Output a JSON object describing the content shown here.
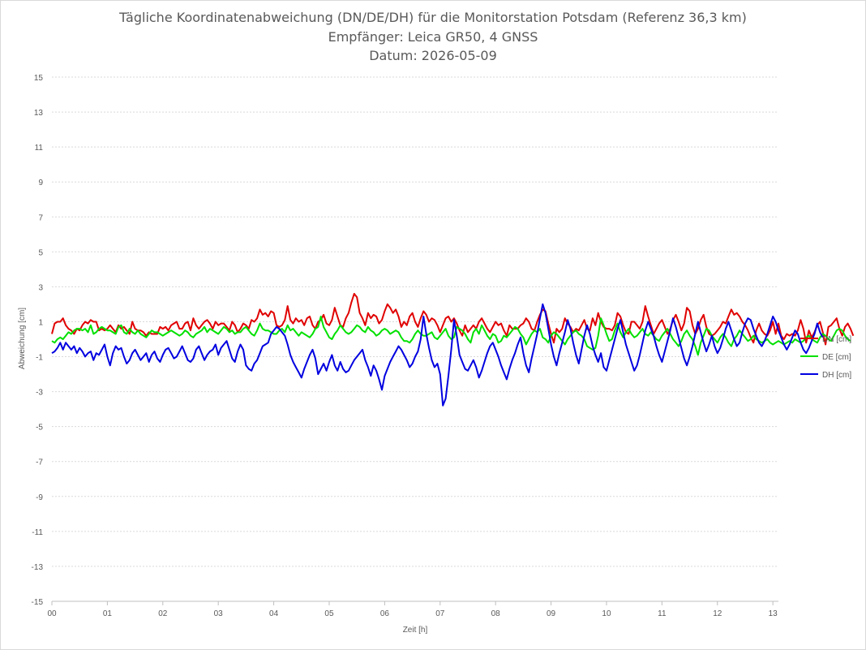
{
  "title_lines": [
    "Tägliche Koordinatenabweichung (DN/DE/DH) für die Monitorstation Potsdam (Referenz 36,3 km)",
    "Empfänger: Leica GR50, 4 GNSS",
    "Datum: 2026-05-09"
  ],
  "chart_data": {
    "type": "line",
    "title": "Tägliche Koordinatenabweichung (DN/DE/DH) für die Monitorstation Potsdam (Referenz 36,3 km)",
    "subtitle": [
      "Empfänger: Leica GR50, 4 GNSS",
      "Datum: 2026-05-09"
    ],
    "xlabel": "Zeit [h]",
    "ylabel": "Abweichung [cm]",
    "xlim": [
      0,
      13.1
    ],
    "ylim": [
      -15,
      15
    ],
    "x_ticks": [
      "00",
      "01",
      "02",
      "03",
      "04",
      "05",
      "06",
      "07",
      "08",
      "09",
      "10",
      "11",
      "12",
      "13"
    ],
    "y_ticks": [
      "15",
      "13",
      "11",
      "9",
      "7",
      "5",
      "3",
      "1",
      "-1",
      "-3",
      "-5",
      "-7",
      "-9",
      "-11",
      "-13",
      "-15"
    ],
    "grid": "horizontal dotted",
    "legend_position": "right",
    "x_step_h": 0.05,
    "series": [
      {
        "name": "DN [cm]",
        "color": "#e00000",
        "values": [
          0.3,
          0.9,
          1.0,
          1.0,
          1.2,
          0.8,
          0.6,
          0.5,
          0.3,
          0.6,
          0.5,
          0.8,
          1.0,
          0.9,
          1.1,
          1.0,
          1.0,
          0.5,
          0.6,
          0.5,
          0.6,
          0.8,
          0.6,
          0.4,
          0.8,
          0.6,
          0.7,
          0.5,
          0.3,
          1.0,
          0.6,
          0.5,
          0.5,
          0.4,
          0.2,
          0.4,
          0.3,
          0.3,
          0.3,
          0.7,
          0.6,
          0.7,
          0.5,
          0.8,
          0.9,
          1.0,
          0.6,
          0.6,
          0.9,
          1.0,
          0.5,
          1.2,
          0.8,
          0.6,
          0.8,
          1.0,
          1.1,
          0.9,
          0.6,
          1.0,
          0.8,
          0.9,
          0.9,
          0.7,
          0.5,
          1.0,
          0.8,
          0.4,
          0.6,
          0.9,
          0.8,
          0.6,
          1.1,
          1.0,
          1.2,
          1.7,
          1.4,
          1.5,
          1.3,
          1.6,
          1.5,
          0.8,
          0.7,
          0.8,
          1.1,
          1.9,
          1.1,
          0.9,
          1.2,
          1.0,
          1.1,
          0.8,
          1.2,
          1.3,
          0.8,
          0.6,
          1.0,
          1.1,
          1.4,
          0.9,
          0.8,
          1.1,
          1.8,
          1.3,
          0.8,
          0.7,
          1.2,
          1.5,
          2.1,
          2.6,
          2.4,
          1.5,
          1.2,
          0.8,
          1.5,
          1.2,
          1.4,
          1.3,
          0.9,
          1.1,
          1.6,
          2.0,
          1.8,
          1.5,
          1.7,
          1.3,
          0.7,
          1.0,
          0.8,
          1.3,
          1.5,
          1.0,
          0.7,
          1.2,
          1.6,
          1.4,
          1.0,
          1.2,
          1.1,
          0.8,
          0.4,
          0.8,
          1.2,
          1.3,
          1.0,
          1.2,
          0.9,
          0.5,
          0.2,
          0.8,
          0.4,
          0.6,
          0.8,
          0.6,
          1.0,
          1.2,
          0.9,
          0.6,
          0.4,
          0.7,
          1.0,
          0.8,
          0.9,
          0.5,
          0.2,
          0.8,
          0.6,
          0.6,
          0.6,
          0.8,
          0.9,
          1.2,
          1.0,
          0.6,
          0.5,
          1.0,
          1.4,
          1.7,
          1.6,
          0.9,
          0.3,
          -0.2,
          0.6,
          0.4,
          0.6,
          1.2,
          0.9,
          0.7,
          0.4,
          0.6,
          0.5,
          0.8,
          1.1,
          0.6,
          0.5,
          1.2,
          0.8,
          1.5,
          1.0,
          0.7,
          0.6,
          0.6,
          0.5,
          0.8,
          1.5,
          1.3,
          0.8,
          0.4,
          0.3,
          1.0,
          1.0,
          0.8,
          0.6,
          1.0,
          1.9,
          1.3,
          0.8,
          0.3,
          0.6,
          0.9,
          1.1,
          0.7,
          0.3,
          0.6,
          1.1,
          1.4,
          1.0,
          0.5,
          0.9,
          1.8,
          1.6,
          0.8,
          0.3,
          0.6,
          1.1,
          1.4,
          0.7,
          0.3,
          0.2,
          0.3,
          0.5,
          0.7,
          1.0,
          0.9,
          1.3,
          1.7,
          1.4,
          1.5,
          1.3,
          1.0,
          0.8,
          0.5,
          0.1,
          -0.2,
          0.5,
          0.9,
          0.5,
          0.3,
          0.2,
          0.5,
          1.0,
          0.3,
          0.9,
          0.2,
          0.0,
          0.3,
          0.2,
          0.3,
          0.2,
          0.5,
          1.1,
          0.6,
          -0.2,
          0.5,
          0.1,
          0.4,
          0.8,
          1.0,
          0.4,
          -0.3,
          0.7,
          0.8,
          1.0,
          1.2,
          0.6,
          0.2,
          0.7,
          0.9,
          0.6,
          0.2
        ]
      },
      {
        "name": "DE [cm]",
        "color": "#00e000",
        "values": [
          -0.1,
          -0.2,
          0.0,
          0.1,
          0.0,
          0.2,
          0.4,
          0.3,
          0.5,
          0.6,
          0.6,
          0.5,
          0.6,
          0.4,
          0.8,
          0.3,
          0.4,
          0.6,
          0.7,
          0.6,
          0.5,
          0.5,
          0.4,
          0.3,
          0.7,
          0.8,
          0.4,
          0.3,
          0.6,
          0.4,
          0.3,
          0.5,
          0.3,
          0.2,
          0.1,
          0.3,
          0.5,
          0.4,
          0.4,
          0.3,
          0.2,
          0.3,
          0.4,
          0.5,
          0.4,
          0.3,
          0.2,
          0.3,
          0.5,
          0.4,
          0.2,
          0.1,
          0.3,
          0.4,
          0.5,
          0.7,
          0.4,
          0.6,
          0.5,
          0.4,
          0.3,
          0.5,
          0.7,
          0.6,
          0.4,
          0.5,
          0.3,
          0.4,
          0.4,
          0.6,
          0.7,
          0.5,
          0.3,
          0.2,
          0.5,
          0.9,
          0.6,
          0.5,
          0.5,
          0.4,
          0.3,
          0.3,
          0.5,
          0.6,
          0.4,
          0.8,
          0.5,
          0.6,
          0.4,
          0.2,
          0.4,
          0.3,
          0.2,
          0.1,
          0.3,
          0.6,
          0.7,
          1.3,
          0.7,
          0.4,
          0.1,
          0.0,
          0.3,
          0.5,
          0.8,
          0.6,
          0.4,
          0.3,
          0.4,
          0.6,
          0.8,
          0.7,
          0.5,
          0.4,
          0.7,
          0.5,
          0.4,
          0.2,
          0.3,
          0.5,
          0.6,
          0.5,
          0.3,
          0.4,
          0.5,
          0.4,
          0.1,
          -0.1,
          -0.1,
          -0.2,
          0.0,
          0.3,
          0.5,
          0.3,
          0.2,
          0.2,
          0.3,
          0.4,
          0.1,
          0.0,
          0.2,
          0.4,
          0.6,
          0.2,
          0.0,
          0.1,
          0.7,
          0.6,
          0.5,
          0.3,
          0.0,
          -0.2,
          0.4,
          0.6,
          0.3,
          0.8,
          0.5,
          0.2,
          0.0,
          0.3,
          0.2,
          -0.2,
          -0.1,
          0.2,
          0.1,
          0.3,
          0.5,
          0.7,
          0.6,
          0.3,
          0.1,
          -0.3,
          0.0,
          0.3,
          0.5,
          0.4,
          0.6,
          0.1,
          0.0,
          -0.2,
          0.2,
          0.4,
          0.3,
          0.1,
          -0.1,
          -0.3,
          0.0,
          0.2,
          0.4,
          0.5,
          0.3,
          0.2,
          0.0,
          -0.4,
          -0.5,
          -0.6,
          -0.5,
          0.2,
          1.2,
          0.8,
          0.3,
          -0.1,
          0.0,
          0.5,
          0.9,
          0.4,
          0.1,
          0.4,
          0.6,
          0.3,
          0.1,
          0.2,
          0.4,
          0.6,
          0.3,
          0.2,
          0.4,
          0.2,
          0.0,
          -0.1,
          0.2,
          0.4,
          0.6,
          0.3,
          0.0,
          -0.2,
          -0.4,
          -0.1,
          0.3,
          0.5,
          0.2,
          0.0,
          -0.4,
          -0.9,
          -0.2,
          0.2,
          0.6,
          0.5,
          0.2,
          0.0,
          -0.2,
          0.1,
          0.3,
          0.1,
          -0.2,
          -0.4,
          0.0,
          0.2,
          0.5,
          0.3,
          0.1,
          -0.1,
          0.0,
          0.2,
          0.0,
          -0.1,
          -0.2,
          -0.1,
          0.0,
          -0.2,
          -0.3,
          -0.2,
          -0.1,
          -0.2,
          -0.3,
          -0.2,
          -0.1,
          -0.2,
          0.0,
          -0.1,
          -0.2,
          -0.1,
          0.1,
          0.2,
          0.0,
          -0.1,
          -0.2,
          0.1,
          0.3,
          0.2,
          0.0,
          -0.1,
          0.2,
          0.5,
          0.6,
          0.5,
          0.2,
          0.0,
          -0.1
        ]
      },
      {
        "name": "DH [cm]",
        "color": "#0000e0",
        "values": [
          -0.8,
          -0.7,
          -0.5,
          -0.2,
          -0.6,
          -0.2,
          -0.4,
          -0.6,
          -0.4,
          -0.8,
          -0.5,
          -0.7,
          -1.0,
          -0.8,
          -0.7,
          -1.2,
          -0.8,
          -0.9,
          -0.6,
          -0.3,
          -1.0,
          -1.5,
          -0.8,
          -0.4,
          -0.6,
          -0.5,
          -1.0,
          -1.4,
          -1.2,
          -0.8,
          -0.6,
          -0.9,
          -1.2,
          -1.0,
          -0.8,
          -1.3,
          -0.9,
          -0.7,
          -1.1,
          -1.3,
          -0.9,
          -0.6,
          -0.5,
          -0.8,
          -1.1,
          -1.0,
          -0.7,
          -0.4,
          -0.8,
          -1.2,
          -1.3,
          -1.1,
          -0.6,
          -0.4,
          -0.8,
          -1.2,
          -0.9,
          -0.7,
          -0.6,
          -0.3,
          -0.9,
          -0.5,
          -0.3,
          -0.1,
          -0.6,
          -1.1,
          -1.3,
          -0.7,
          -0.3,
          -0.6,
          -1.5,
          -1.7,
          -1.8,
          -1.4,
          -1.2,
          -0.8,
          -0.4,
          -0.3,
          -0.2,
          0.3,
          0.5,
          0.7,
          0.6,
          0.4,
          0.2,
          -0.3,
          -0.9,
          -1.3,
          -1.6,
          -1.9,
          -2.2,
          -1.7,
          -1.3,
          -0.9,
          -0.6,
          -1.1,
          -2.0,
          -1.7,
          -1.4,
          -1.8,
          -1.3,
          -0.9,
          -1.5,
          -1.8,
          -1.3,
          -1.7,
          -1.9,
          -1.8,
          -1.5,
          -1.2,
          -1.0,
          -0.8,
          -0.6,
          -1.2,
          -1.6,
          -2.1,
          -1.5,
          -1.8,
          -2.3,
          -2.9,
          -2.1,
          -1.7,
          -1.3,
          -1.0,
          -0.7,
          -0.4,
          -0.6,
          -0.9,
          -1.2,
          -1.6,
          -1.4,
          -1.0,
          -0.7,
          0.0,
          1.3,
          0.3,
          -0.5,
          -1.2,
          -1.6,
          -1.4,
          -2.0,
          -3.8,
          -3.4,
          -2.1,
          -0.6,
          1.1,
          0.2,
          -0.9,
          -1.3,
          -1.7,
          -1.8,
          -1.5,
          -1.2,
          -1.6,
          -2.2,
          -1.8,
          -1.3,
          -0.8,
          -0.4,
          -0.2,
          -0.6,
          -1.0,
          -1.5,
          -1.9,
          -2.3,
          -1.7,
          -1.2,
          -0.8,
          -0.3,
          0.1,
          -0.8,
          -1.5,
          -1.9,
          -1.1,
          -0.4,
          0.3,
          1.2,
          2.0,
          1.5,
          0.6,
          -0.3,
          -1.0,
          -1.5,
          -0.8,
          -0.2,
          0.4,
          1.1,
          0.6,
          -0.2,
          -0.9,
          -1.4,
          -0.6,
          0.2,
          0.8,
          0.3,
          -0.4,
          -0.9,
          -1.3,
          -0.8,
          -1.6,
          -1.8,
          -1.2,
          -0.6,
          0.0,
          0.6,
          1.1,
          0.4,
          -0.3,
          -0.8,
          -1.3,
          -1.8,
          -1.5,
          -0.9,
          -0.2,
          0.5,
          1.0,
          0.6,
          0.2,
          -0.4,
          -0.9,
          -1.3,
          -0.7,
          -0.1,
          0.5,
          1.2,
          0.7,
          0.1,
          -0.5,
          -1.1,
          -1.5,
          -1.0,
          -0.4,
          0.3,
          1.0,
          0.4,
          -0.2,
          -0.7,
          -0.3,
          0.2,
          -0.4,
          -0.8,
          -0.5,
          0.0,
          0.6,
          1.0,
          0.5,
          0.0,
          -0.4,
          -0.2,
          0.4,
          0.9,
          1.2,
          1.1,
          0.6,
          0.2,
          -0.2,
          -0.4,
          -0.1,
          0.3,
          0.8,
          1.3,
          1.0,
          0.5,
          0.1,
          -0.3,
          -0.6,
          -0.3,
          0.1,
          0.5,
          0.3,
          -0.2,
          -0.6,
          -0.8,
          -0.5,
          -0.1,
          0.3,
          0.9,
          0.4,
          0.1
        ]
      }
    ]
  }
}
